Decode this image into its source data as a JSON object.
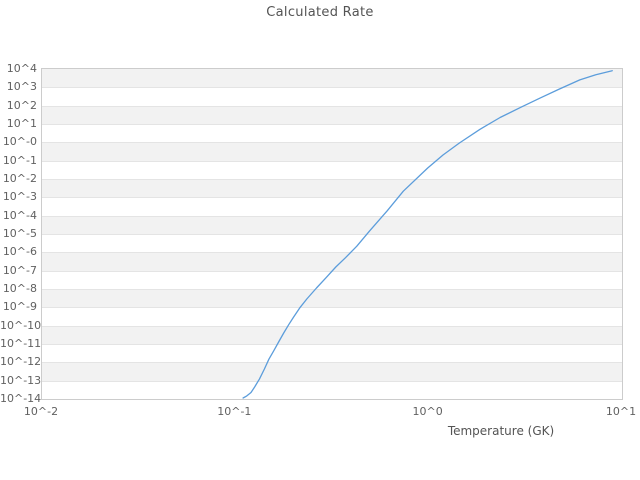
{
  "title": "Calculated Rate",
  "colors": {
    "curve": "#5c9ddb",
    "band_shaded": "#f2f2f2",
    "band_plain": "#ffffff",
    "gridline": "#e4e4e4",
    "plot_border": "#cccccc",
    "text": "#616161",
    "title_text": "#545454"
  },
  "chart_data": {
    "type": "line",
    "title": "Calculated Rate",
    "xlabel": "Temperature (GK)",
    "ylabel": "",
    "x_scale": "log10",
    "y_scale": "log10",
    "xlim": [
      0.01,
      10
    ],
    "ylim": [
      1e-14,
      10000.0
    ],
    "x_tick_labels": [
      "10^-2",
      "10^-1",
      "10^0",
      "10^1"
    ],
    "x_tick_log_values": [
      -2,
      -1,
      0,
      1
    ],
    "y_tick_labels": [
      "10^4",
      "10^3",
      "10^2",
      "10^1",
      "10^-0",
      "10^-1",
      "10^-2",
      "10^-3",
      "10^-4",
      "10^-5",
      "10^-6",
      "10^-7",
      "10^-8",
      "10^-9",
      "10^-10",
      "10^-11",
      "10^-12",
      "10^-13",
      "10^-14"
    ],
    "y_tick_log_values": [
      4,
      3,
      2,
      1,
      0,
      -1,
      -2,
      -3,
      -4,
      -5,
      -6,
      -7,
      -8,
      -9,
      -10,
      -11,
      -12,
      -13,
      -14
    ],
    "grid": "horizontal alternating shaded bands, no vertical gridlines",
    "legend": "none",
    "series": [
      {
        "name": "calculated-rate",
        "color": "#5c9ddb",
        "x": [
          0.111,
          0.116,
          0.122,
          0.127,
          0.135,
          0.143,
          0.151,
          0.16,
          0.17,
          0.18,
          0.191,
          0.202,
          0.219,
          0.237,
          0.266,
          0.299,
          0.335,
          0.376,
          0.43,
          0.501,
          0.617,
          0.748,
          1.0,
          1.2,
          1.46,
          1.86,
          2.37,
          3.02,
          3.8,
          4.79,
          6.12,
          7.41,
          9.0
        ],
        "y": [
          1e-14,
          1.3e-14,
          2e-14,
          3.8e-14,
          1.1e-13,
          3.8e-13,
          1.3e-12,
          3.8e-12,
          1.2e-11,
          3.5e-11,
          1e-10,
          2.5e-10,
          8.9e-10,
          2.5e-09,
          1e-08,
          3.8e-08,
          1.4e-07,
          4.5e-07,
          1.9e-06,
          1.3e-05,
          0.00016,
          0.0019,
          0.035,
          0.18,
          0.81,
          4.5,
          20,
          71,
          224,
          708,
          2239,
          4266,
          7080
        ]
      }
    ]
  }
}
